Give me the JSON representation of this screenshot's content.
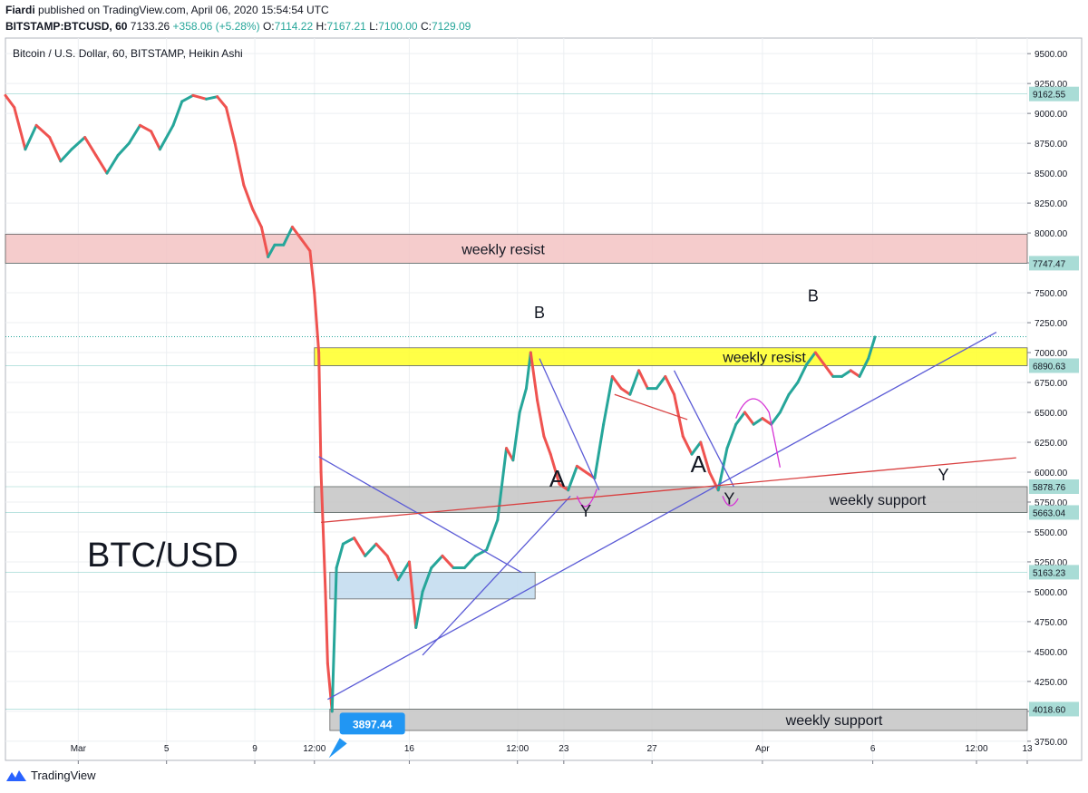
{
  "header": {
    "author": "Fiardi",
    "published": "published on TradingView.com, April 06, 2020 15:54:54 UTC",
    "symbol": "BITSTAMP:BTCUSD, 60",
    "last": "7133.26",
    "change": "+358.06 (+5.28%)",
    "open_label": "O:",
    "open": "7114.22",
    "high_label": "H:",
    "high": "7167.21",
    "low_label": "L:",
    "low": "7100.00",
    "close_label": "C:",
    "close": "7129.09"
  },
  "pane_title": "Bitcoin / U.S. Dollar, 60, BITSTAMP, Heikin Ashi",
  "footer": {
    "brand": "TradingView",
    "logo_icon": "tradingview-logo-icon"
  },
  "colors": {
    "up": "#26a69a",
    "down": "#ef5350",
    "resist_zone": "#f4c7c7",
    "yellow_zone": "#ffff33",
    "support_zone": "#c8c8c8",
    "blue_zone": "#c5ddf0",
    "trend_blue": "#5b5bd6",
    "trend_red": "#d94040",
    "magenta": "#d633d6",
    "label_blue": "#2196f3"
  },
  "chart_data": {
    "type": "candlestick",
    "style": "Heikin Ashi",
    "title": "Bitcoin / U.S. Dollar, 60, BITSTAMP, Heikin Ashi",
    "watermark": "BTC/USD",
    "y_ticks": [
      9500,
      9250,
      9000,
      8750,
      8500,
      8250,
      8000,
      7750,
      7500,
      7250,
      7000,
      6750,
      6500,
      6250,
      6000,
      5750,
      5500,
      5250,
      5000,
      4750,
      4500,
      4250,
      4000,
      3750
    ],
    "y_tick_labels": [
      "9500.00",
      "9250.00",
      "9000.00",
      "8750.00",
      "8500.00",
      "8250.00",
      "8000.00",
      "7750.00",
      "7500.00",
      "7250.00",
      "7000.00",
      "6750.00",
      "6500.00",
      "6250.00",
      "6000.00",
      "5750.00",
      "5500.00",
      "5250.00",
      "5000.00",
      "4750.00",
      "4500.00",
      "4250.00",
      "4000.00",
      "3750.00"
    ],
    "ylim": [
      3590,
      9630
    ],
    "x_ticks": [
      {
        "label": "Mar",
        "t": 0.0
      },
      {
        "label": "5",
        "t": 4.0
      },
      {
        "label": "9",
        "t": 8.0
      },
      {
        "label": "12:00",
        "t": 10.7
      },
      {
        "label": "16",
        "t": 15.0
      },
      {
        "label": "12:00",
        "t": 19.9
      },
      {
        "label": "23",
        "t": 22.0
      },
      {
        "label": "27",
        "t": 26.0
      },
      {
        "label": "Apr",
        "t": 31.0
      },
      {
        "label": "6",
        "t": 36.0
      },
      {
        "label": "12:00",
        "t": 40.7
      },
      {
        "label": "13",
        "t": 43.0
      }
    ],
    "xlim": [
      -3.3,
      43.0
    ],
    "series": [
      {
        "name": "price",
        "points": [
          [
            -3.3,
            9150
          ],
          [
            -2.9,
            9050
          ],
          [
            -2.4,
            8700
          ],
          [
            -1.9,
            8900
          ],
          [
            -1.3,
            8800
          ],
          [
            -0.8,
            8600
          ],
          [
            -0.3,
            8700
          ],
          [
            0.3,
            8800
          ],
          [
            0.8,
            8650
          ],
          [
            1.3,
            8500
          ],
          [
            1.8,
            8650
          ],
          [
            2.3,
            8750
          ],
          [
            2.8,
            8900
          ],
          [
            3.3,
            8850
          ],
          [
            3.7,
            8700
          ],
          [
            4.3,
            8900
          ],
          [
            4.7,
            9100
          ],
          [
            5.2,
            9150
          ],
          [
            5.8,
            9120
          ],
          [
            6.3,
            9140
          ],
          [
            6.7,
            9050
          ],
          [
            7.1,
            8750
          ],
          [
            7.5,
            8400
          ],
          [
            7.9,
            8200
          ],
          [
            8.3,
            8050
          ],
          [
            8.6,
            7800
          ],
          [
            8.9,
            7900
          ],
          [
            9.3,
            7900
          ],
          [
            9.7,
            8050
          ],
          [
            10.1,
            7950
          ],
          [
            10.3,
            7900
          ],
          [
            10.5,
            7850
          ],
          [
            10.7,
            7500
          ],
          [
            10.9,
            7000
          ],
          [
            11.0,
            6000
          ],
          [
            11.2,
            5000
          ],
          [
            11.3,
            4400
          ],
          [
            11.5,
            4000
          ],
          [
            11.7,
            5200
          ],
          [
            12.0,
            5400
          ],
          [
            12.5,
            5450
          ],
          [
            13.0,
            5300
          ],
          [
            13.5,
            5400
          ],
          [
            14.0,
            5300
          ],
          [
            14.5,
            5100
          ],
          [
            15.0,
            5250
          ],
          [
            15.3,
            4700
          ],
          [
            15.6,
            5000
          ],
          [
            16.0,
            5200
          ],
          [
            16.5,
            5300
          ],
          [
            17.0,
            5200
          ],
          [
            17.5,
            5200
          ],
          [
            18.0,
            5300
          ],
          [
            18.5,
            5350
          ],
          [
            19.0,
            5600
          ],
          [
            19.4,
            6200
          ],
          [
            19.7,
            6100
          ],
          [
            20.0,
            6500
          ],
          [
            20.3,
            6700
          ],
          [
            20.5,
            7000
          ],
          [
            20.8,
            6600
          ],
          [
            21.1,
            6300
          ],
          [
            21.4,
            6150
          ],
          [
            21.8,
            5900
          ],
          [
            22.2,
            5850
          ],
          [
            22.6,
            6050
          ],
          [
            23.0,
            6000
          ],
          [
            23.4,
            5950
          ],
          [
            23.8,
            6400
          ],
          [
            24.2,
            6800
          ],
          [
            24.6,
            6700
          ],
          [
            25.0,
            6650
          ],
          [
            25.4,
            6850
          ],
          [
            25.8,
            6700
          ],
          [
            26.2,
            6700
          ],
          [
            26.6,
            6800
          ],
          [
            27.0,
            6650
          ],
          [
            27.4,
            6300
          ],
          [
            27.8,
            6150
          ],
          [
            28.2,
            6250
          ],
          [
            28.6,
            6000
          ],
          [
            29.0,
            5850
          ],
          [
            29.4,
            6200
          ],
          [
            29.8,
            6400
          ],
          [
            30.2,
            6500
          ],
          [
            30.6,
            6400
          ],
          [
            31.0,
            6450
          ],
          [
            31.4,
            6400
          ],
          [
            31.8,
            6500
          ],
          [
            32.2,
            6650
          ],
          [
            32.6,
            6750
          ],
          [
            33.0,
            6900
          ],
          [
            33.4,
            7000
          ],
          [
            33.8,
            6900
          ],
          [
            34.2,
            6800
          ],
          [
            34.6,
            6800
          ],
          [
            35.0,
            6850
          ],
          [
            35.4,
            6800
          ],
          [
            35.8,
            6950
          ],
          [
            36.1,
            7130
          ]
        ]
      }
    ],
    "price_labels": [
      {
        "text": "9162.55",
        "value": 9162.55
      },
      {
        "text": "7747.47",
        "value": 7747.47
      },
      {
        "text": "6890.63",
        "value": 6890.63
      },
      {
        "text": "5878.76",
        "value": 5878.76
      },
      {
        "text": "5663.04",
        "value": 5663.04
      },
      {
        "text": "5163.23",
        "value": 5163.23
      },
      {
        "text": "4018.60",
        "value": 4018.6
      }
    ],
    "zones": [
      {
        "text": "weekly resist",
        "x0": -3.3,
        "x1": 43.0,
        "y0": 7747.47,
        "y1": 7990,
        "fill": "resist_zone"
      },
      {
        "text": "weekly resist",
        "x0": 10.7,
        "x1": 43.0,
        "y0": 6890.63,
        "y1": 7040,
        "fill": "yellow_zone"
      },
      {
        "text": "weekly support",
        "x0": 10.7,
        "x1": 43.0,
        "y0": 5663.04,
        "y1": 5878.76,
        "fill": "support_zone"
      },
      {
        "text": "",
        "x0": 11.4,
        "x1": 20.7,
        "y0": 4940,
        "y1": 5163.23,
        "fill": "blue_zone"
      },
      {
        "text": "weekly support",
        "x0": 11.4,
        "x1": 43.0,
        "y0": 3840,
        "y1": 4018.6,
        "fill": "support_zone"
      }
    ],
    "trendlines": [
      {
        "x0": 11.3,
        "y0": 4100,
        "x1": 41.6,
        "y1": 7170,
        "color": "trend_blue"
      },
      {
        "x0": 10.9,
        "y0": 6130,
        "x1": 20.1,
        "y1": 5160,
        "color": "trend_blue"
      },
      {
        "x0": 15.6,
        "y0": 4470,
        "x1": 22.3,
        "y1": 5800,
        "color": "trend_blue"
      },
      {
        "x0": 20.9,
        "y0": 6950,
        "x1": 23.6,
        "y1": 5850,
        "color": "trend_blue"
      },
      {
        "x0": 27.0,
        "y0": 6850,
        "x1": 29.7,
        "y1": 5880,
        "color": "trend_blue"
      },
      {
        "x0": 11.0,
        "y0": 5580,
        "x1": 42.5,
        "y1": 6120,
        "color": "trend_red"
      },
      {
        "x0": 24.3,
        "y0": 6650,
        "x1": 27.6,
        "y1": 6440,
        "color": "trend_red"
      }
    ],
    "annotations": [
      {
        "text": "B",
        "x": 20.9,
        "y": 7290
      },
      {
        "text": "A",
        "x": 21.7,
        "y": 5880
      },
      {
        "text": "Y",
        "x": 23.0,
        "y": 5630
      },
      {
        "text": "A",
        "x": 28.1,
        "y": 6000
      },
      {
        "text": "Y",
        "x": 29.5,
        "y": 5730
      },
      {
        "text": "B",
        "x": 33.3,
        "y": 7430
      },
      {
        "text": "Y",
        "x": 39.2,
        "y": 5930
      }
    ],
    "callout": {
      "text": "3897.44",
      "x": 11.6,
      "y": 3897.44
    }
  }
}
